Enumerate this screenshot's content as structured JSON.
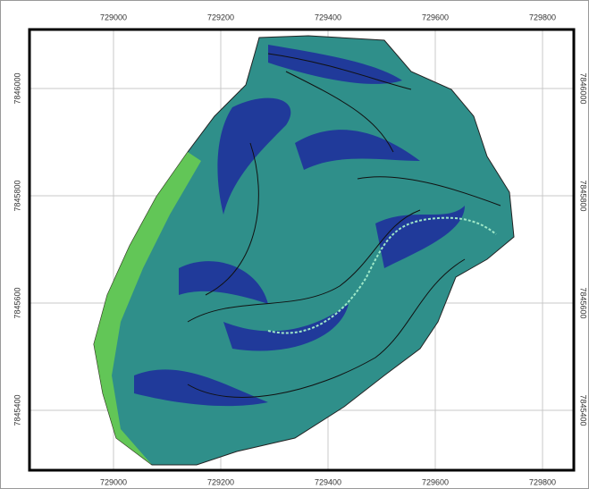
{
  "map": {
    "x_labels": [
      "729000",
      "729200",
      "729400",
      "729600",
      "729800"
    ],
    "y_labels": [
      "7846000",
      "7845800",
      "7845600",
      "7845400"
    ]
  }
}
